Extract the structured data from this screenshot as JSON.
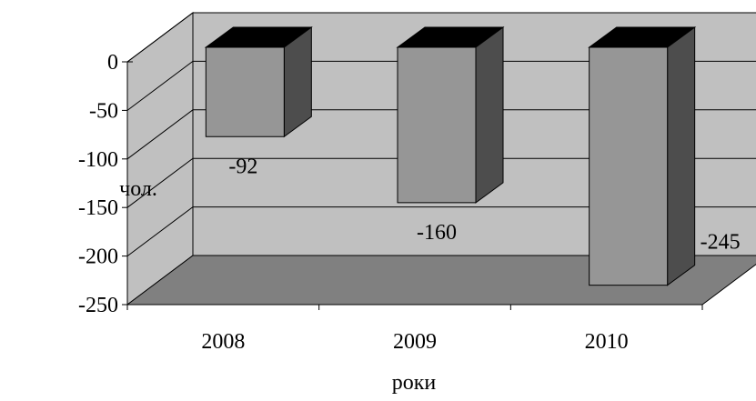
{
  "chart_data": {
    "type": "bar",
    "style": "3d-column",
    "categories": [
      "2008",
      "2009",
      "2010"
    ],
    "values": [
      -92,
      -160,
      -245
    ],
    "data_labels": [
      "-92",
      "-160",
      "-245"
    ],
    "xlabel": "роки",
    "ylabel": "чол.",
    "ylim": [
      -250,
      0
    ],
    "yticks": [
      0,
      -50,
      -100,
      -150,
      -200,
      -250
    ],
    "ytick_labels": [
      "0",
      "-50",
      "-100",
      "-150",
      "-200",
      "-250"
    ],
    "grid": true,
    "legend": "none",
    "colors": {
      "back_wall": "#c0c0c0",
      "floor": "#808080",
      "bar_front": "#969696",
      "bar_side": "#4d4d4d",
      "bar_top": "#000000",
      "gridline": "#000000"
    }
  }
}
